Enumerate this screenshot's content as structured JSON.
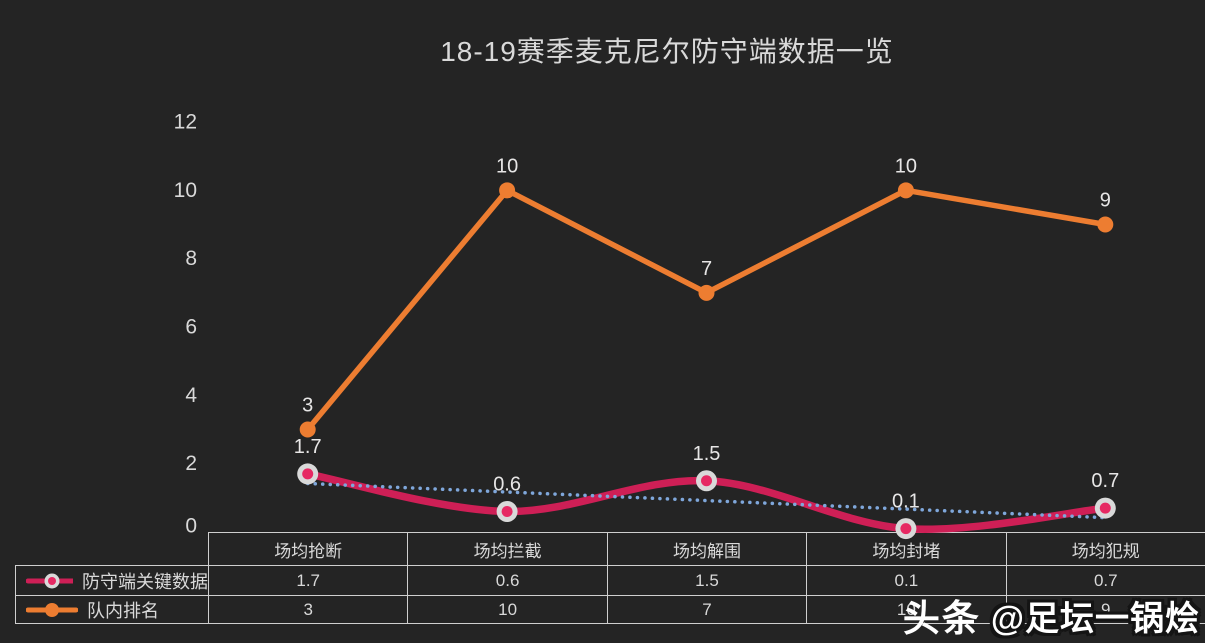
{
  "title": "18-19赛季麦克尼尔防守端数据一览",
  "watermark": {
    "brand": "头条",
    "handle": "@足坛一锅烩"
  },
  "colors": {
    "background": "#242424",
    "text": "#D9D9D9",
    "table_border": "#CFCFCF",
    "marker_ring": "#D9D9D9",
    "crimson": "#CE1F56",
    "crimson_marker": "#E62963",
    "orange": "#ED7D31",
    "trendline_blue": "#7FA7DB"
  },
  "chart_data": {
    "type": "line",
    "title": "18-19赛季麦克尼尔防守端数据一览",
    "categories": [
      "场均抢断",
      "场均拦截",
      "场均解围",
      "场均封堵",
      "场均犯规"
    ],
    "series": [
      {
        "name": "防守端关键数据",
        "values": [
          1.7,
          0.6,
          1.5,
          0.1,
          0.7
        ],
        "color": "#CE1F56",
        "marker_center": "#E62963",
        "line_style": "smooth",
        "marker": "ring-dot"
      },
      {
        "name": "队内排名",
        "values": [
          3,
          10,
          7,
          10,
          9
        ],
        "color": "#ED7D31",
        "line_style": "straight",
        "marker": "dot"
      }
    ],
    "trendline": {
      "of_series": "防守端关键数据",
      "style": "dotted",
      "color": "#7FA7DB",
      "start": 1.42,
      "end": 0.42
    },
    "ylim": [
      0,
      12
    ],
    "yticks": [
      0,
      2,
      4,
      6,
      8,
      10,
      12
    ],
    "grid": false,
    "legend_position": "table-left",
    "xlabel": "",
    "ylabel": ""
  }
}
